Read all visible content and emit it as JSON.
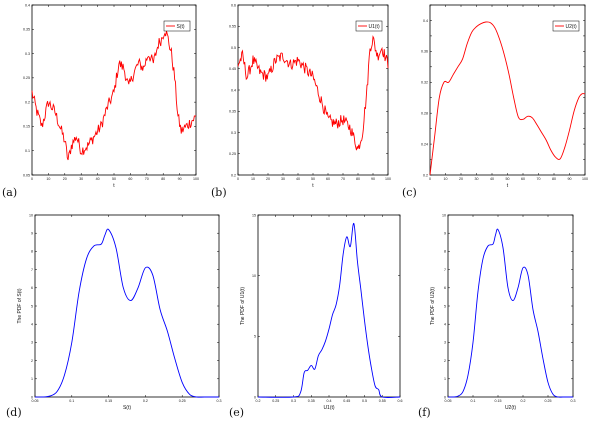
{
  "chart_data": [
    {
      "id": "a",
      "panel_label": "(a)",
      "type": "line",
      "color": "#ff0000",
      "legend": "S(t)",
      "legend_placement": "top-right",
      "xlabel": "t",
      "ylabel": "",
      "xlim": [
        0,
        100
      ],
      "ylim": [
        0.05,
        0.4
      ],
      "xticks": [
        0,
        10,
        20,
        30,
        40,
        50,
        60,
        70,
        80,
        90,
        100
      ],
      "yticks": [
        0.05,
        0.1,
        0.15,
        0.2,
        0.25,
        0.3,
        0.35,
        0.4
      ],
      "ytick_labels": [
        "0.05",
        "0.1",
        "0.15",
        "0.2",
        "0.25",
        "0.3",
        "0.35",
        "0.4"
      ],
      "noise": 0.012,
      "noise_step": 0.5,
      "x": [
        0,
        3,
        6,
        10,
        14,
        17,
        20,
        22,
        24,
        27,
        30,
        34,
        38,
        42,
        46,
        50,
        53,
        56,
        59,
        62,
        65,
        68,
        71,
        74,
        77,
        79,
        81,
        83,
        85,
        87,
        89,
        91,
        94,
        97,
        100
      ],
      "y": [
        0.22,
        0.18,
        0.15,
        0.2,
        0.18,
        0.15,
        0.12,
        0.08,
        0.11,
        0.13,
        0.1,
        0.11,
        0.13,
        0.15,
        0.19,
        0.22,
        0.28,
        0.27,
        0.23,
        0.26,
        0.28,
        0.27,
        0.3,
        0.28,
        0.32,
        0.33,
        0.35,
        0.33,
        0.3,
        0.25,
        0.17,
        0.14,
        0.15,
        0.16,
        0.17
      ]
    },
    {
      "id": "b",
      "panel_label": "(b)",
      "type": "line",
      "color": "#ff0000",
      "legend": "U1(t)",
      "legend_sub": "1",
      "legend_placement": "top-right",
      "xlabel": "t",
      "ylabel": "",
      "xlim": [
        0,
        100
      ],
      "ylim": [
        0.2,
        0.6
      ],
      "xticks": [
        0,
        10,
        20,
        30,
        40,
        50,
        60,
        70,
        80,
        90,
        100
      ],
      "yticks": [
        0.2,
        0.25,
        0.3,
        0.35,
        0.4,
        0.45,
        0.5,
        0.55,
        0.6
      ],
      "ytick_labels": [
        "0.2",
        "0.25",
        "0.3",
        "0.35",
        "0.4",
        "0.45",
        "0.5",
        "0.55",
        "0.6"
      ],
      "noise": 0.014,
      "noise_step": 0.5,
      "x": [
        0,
        3,
        6,
        10,
        15,
        20,
        25,
        30,
        35,
        40,
        45,
        50,
        55,
        60,
        65,
        70,
        75,
        80,
        83,
        86,
        88,
        90,
        93,
        96,
        100
      ],
      "y": [
        0.46,
        0.48,
        0.43,
        0.47,
        0.44,
        0.43,
        0.47,
        0.48,
        0.46,
        0.47,
        0.45,
        0.43,
        0.38,
        0.33,
        0.32,
        0.33,
        0.31,
        0.26,
        0.3,
        0.4,
        0.5,
        0.52,
        0.48,
        0.5,
        0.46
      ]
    },
    {
      "id": "c",
      "panel_label": "(c)",
      "type": "line",
      "color": "#ff0000",
      "legend": "U2(t)",
      "legend_sub": "2",
      "legend_placement": "top-right",
      "xlabel": "t",
      "ylabel": "",
      "xlim": [
        0,
        100
      ],
      "ylim": [
        0.2,
        0.42
      ],
      "xticks": [
        0,
        10,
        20,
        30,
        40,
        50,
        60,
        70,
        80,
        90,
        100
      ],
      "yticks": [
        0.2,
        0.22,
        0.24,
        0.26,
        0.28,
        0.3,
        0.32,
        0.34,
        0.36,
        0.38,
        0.4,
        0.42
      ],
      "ytick_labels": [
        "0.2",
        "",
        "0.24",
        "",
        "0.28",
        "",
        "0.32",
        "",
        "0.36",
        "",
        "0.4",
        ""
      ],
      "noise": 0,
      "noise_step": 1,
      "x": [
        0,
        3,
        6,
        9,
        12,
        15,
        18,
        21,
        24,
        27,
        30,
        33,
        36,
        39,
        42,
        45,
        48,
        51,
        54,
        57,
        60,
        63,
        66,
        69,
        72,
        75,
        78,
        81,
        84,
        87,
        90,
        93,
        96,
        98,
        100
      ],
      "y": [
        0.2,
        0.25,
        0.3,
        0.32,
        0.32,
        0.33,
        0.34,
        0.35,
        0.37,
        0.385,
        0.392,
        0.396,
        0.398,
        0.397,
        0.39,
        0.375,
        0.355,
        0.33,
        0.3,
        0.275,
        0.272,
        0.276,
        0.274,
        0.265,
        0.255,
        0.245,
        0.232,
        0.223,
        0.221,
        0.236,
        0.258,
        0.283,
        0.3,
        0.305,
        0.305
      ]
    },
    {
      "id": "d",
      "panel_label": "(d)",
      "type": "line",
      "color": "#0000ff",
      "legend": "",
      "xlabel": "S(t)",
      "ylabel": "The PDF of S(t)",
      "xlim": [
        0.05,
        0.3
      ],
      "ylim": [
        0,
        10
      ],
      "xticks": [
        0.05,
        0.1,
        0.15,
        0.2,
        0.25,
        0.3
      ],
      "yticks": [
        0,
        1,
        2,
        3,
        4,
        5,
        6,
        7,
        8,
        9,
        10
      ],
      "ytick_labels": [
        "0",
        "1",
        "2",
        "3",
        "4",
        "5",
        "6",
        "7",
        "8",
        "9",
        "10"
      ],
      "noise": 0,
      "noise_step": 1,
      "x": [
        0.05,
        0.06,
        0.07,
        0.08,
        0.09,
        0.1,
        0.11,
        0.12,
        0.13,
        0.14,
        0.145,
        0.15,
        0.16,
        0.17,
        0.18,
        0.19,
        0.2,
        0.21,
        0.22,
        0.23,
        0.24,
        0.25,
        0.26,
        0.27,
        0.28,
        0.3
      ],
      "y": [
        0,
        0,
        0.05,
        0.3,
        1.2,
        3.0,
        5.8,
        7.6,
        8.3,
        8.4,
        8.9,
        9.2,
        8.2,
        6.0,
        5.3,
        6.0,
        7.1,
        6.7,
        4.8,
        3.6,
        2.1,
        0.8,
        0.15,
        0,
        0,
        0
      ]
    },
    {
      "id": "e",
      "panel_label": "(e)",
      "type": "line",
      "color": "#0000ff",
      "legend": "",
      "xlabel": "U1(t)",
      "ylabel": "The PDF of U1(t)",
      "xlim": [
        0.2,
        0.6
      ],
      "ylim": [
        0,
        15
      ],
      "xticks": [
        0.2,
        0.25,
        0.3,
        0.35,
        0.4,
        0.45,
        0.5,
        0.55,
        0.6
      ],
      "yticks": [
        0,
        5,
        10,
        15
      ],
      "ytick_labels": [
        "0",
        "5",
        "10",
        "15"
      ],
      "noise": 0,
      "noise_step": 1,
      "x": [
        0.2,
        0.3,
        0.32,
        0.33,
        0.34,
        0.35,
        0.36,
        0.37,
        0.38,
        0.39,
        0.4,
        0.41,
        0.42,
        0.43,
        0.44,
        0.45,
        0.46,
        0.47,
        0.48,
        0.49,
        0.5,
        0.51,
        0.52,
        0.53,
        0.54,
        0.55,
        0.6
      ],
      "y": [
        0,
        0,
        0.4,
        2.0,
        2.2,
        2.6,
        2.3,
        3.4,
        3.9,
        4.6,
        5.6,
        6.8,
        7.6,
        9.2,
        11.8,
        13.2,
        12.4,
        14.3,
        11.2,
        8.8,
        6.3,
        4.1,
        2.3,
        0.9,
        0.6,
        0,
        0
      ]
    },
    {
      "id": "f",
      "panel_label": "(f)",
      "type": "line",
      "color": "#0000ff",
      "legend": "",
      "xlabel": "U2(t)",
      "ylabel": "The PDF of U2(t)",
      "xlim": [
        0.05,
        0.3
      ],
      "ylim": [
        0,
        10
      ],
      "xticks": [
        0.05,
        0.1,
        0.15,
        0.2,
        0.25,
        0.3
      ],
      "yticks": [
        0,
        1,
        2,
        3,
        4,
        5,
        6,
        7,
        8,
        9,
        10
      ],
      "ytick_labels": [
        "0",
        "1",
        "2",
        "3",
        "4",
        "5",
        "6",
        "7",
        "8",
        "9",
        "10"
      ],
      "noise": 0,
      "noise_step": 1,
      "x": [
        0.05,
        0.06,
        0.07,
        0.08,
        0.09,
        0.1,
        0.11,
        0.12,
        0.13,
        0.14,
        0.145,
        0.15,
        0.16,
        0.17,
        0.18,
        0.19,
        0.2,
        0.21,
        0.22,
        0.23,
        0.24,
        0.25,
        0.26,
        0.27,
        0.28,
        0.3
      ],
      "y": [
        0,
        0,
        0.05,
        0.3,
        1.2,
        3.0,
        5.8,
        7.6,
        8.3,
        8.4,
        8.9,
        9.2,
        8.2,
        6.0,
        5.3,
        6.0,
        7.1,
        6.7,
        4.8,
        3.6,
        2.1,
        0.8,
        0.15,
        0,
        0,
        0
      ]
    }
  ]
}
